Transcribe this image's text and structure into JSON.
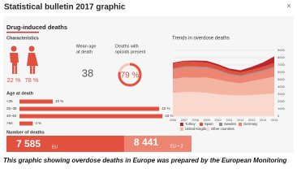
{
  "header": {
    "title": "Statistical bulletin 2017 graphic",
    "close": "×"
  },
  "infographic": {
    "title": "Drug-induced deaths",
    "characteristics": {
      "label": "Characteristics",
      "shares": [
        "22 %",
        "78 %"
      ]
    },
    "mean_age": {
      "label": [
        "Mean age",
        "at death"
      ],
      "value": 38
    },
    "opioids": {
      "label": [
        "Deaths with",
        "opioids present"
      ],
      "value": 79,
      "value_label": "79 %"
    },
    "age": {
      "label": "Age at death",
      "categories": [
        "<25",
        "25–39",
        "40–64",
        ">64"
      ],
      "values": [
        10,
        42,
        43,
        4
      ],
      "value_labels": [
        "10 %",
        "42 %",
        "43 %",
        "4 %"
      ]
    },
    "deaths": {
      "label": "Number of deaths",
      "values": [
        7585,
        8441
      ],
      "value_labels": [
        "7 585",
        "8 441"
      ],
      "units": [
        "EU",
        "EU + 2"
      ]
    }
  },
  "chart_data": {
    "type": "area",
    "title": "Trends in overdose deaths",
    "x": [
      2006,
      2007,
      2008,
      2009,
      2010,
      2011,
      2012,
      2013,
      2014,
      2015
    ],
    "xlim": [
      2006,
      2015
    ],
    "ylim": [
      0,
      9000
    ],
    "yticks": [
      0,
      1000,
      2000,
      3000,
      4000,
      5000,
      6000,
      7000,
      8000,
      9000
    ],
    "series": [
      {
        "name": "Turkey",
        "color": "#b8282c",
        "values": [
          100,
          120,
          200,
          250,
          250,
          250,
          300,
          400,
          600,
          900
        ]
      },
      {
        "name": "Spain",
        "color": "#e2503e",
        "values": [
          700,
          650,
          600,
          550,
          500,
          450,
          400,
          420,
          450,
          470
        ]
      },
      {
        "name": "Sweden",
        "color": "#8c8c8c",
        "values": [
          100,
          120,
          110,
          120,
          110,
          120,
          130,
          130,
          150,
          160
        ]
      },
      {
        "name": "Germany",
        "color": "#ee8573",
        "values": [
          1300,
          1400,
          1450,
          1350,
          1250,
          1000,
          950,
          1000,
          1050,
          1250
        ]
      },
      {
        "name": "United Kingdom",
        "color": "#f4b4a2",
        "values": [
          1900,
          2000,
          1950,
          2100,
          2000,
          1800,
          1700,
          1900,
          2100,
          2300
        ]
      },
      {
        "name": "Other countries",
        "color": "#f9d8cd",
        "values": [
          3200,
          3300,
          3300,
          3200,
          3000,
          2900,
          2800,
          2900,
          3000,
          3100
        ]
      }
    ]
  }
}
